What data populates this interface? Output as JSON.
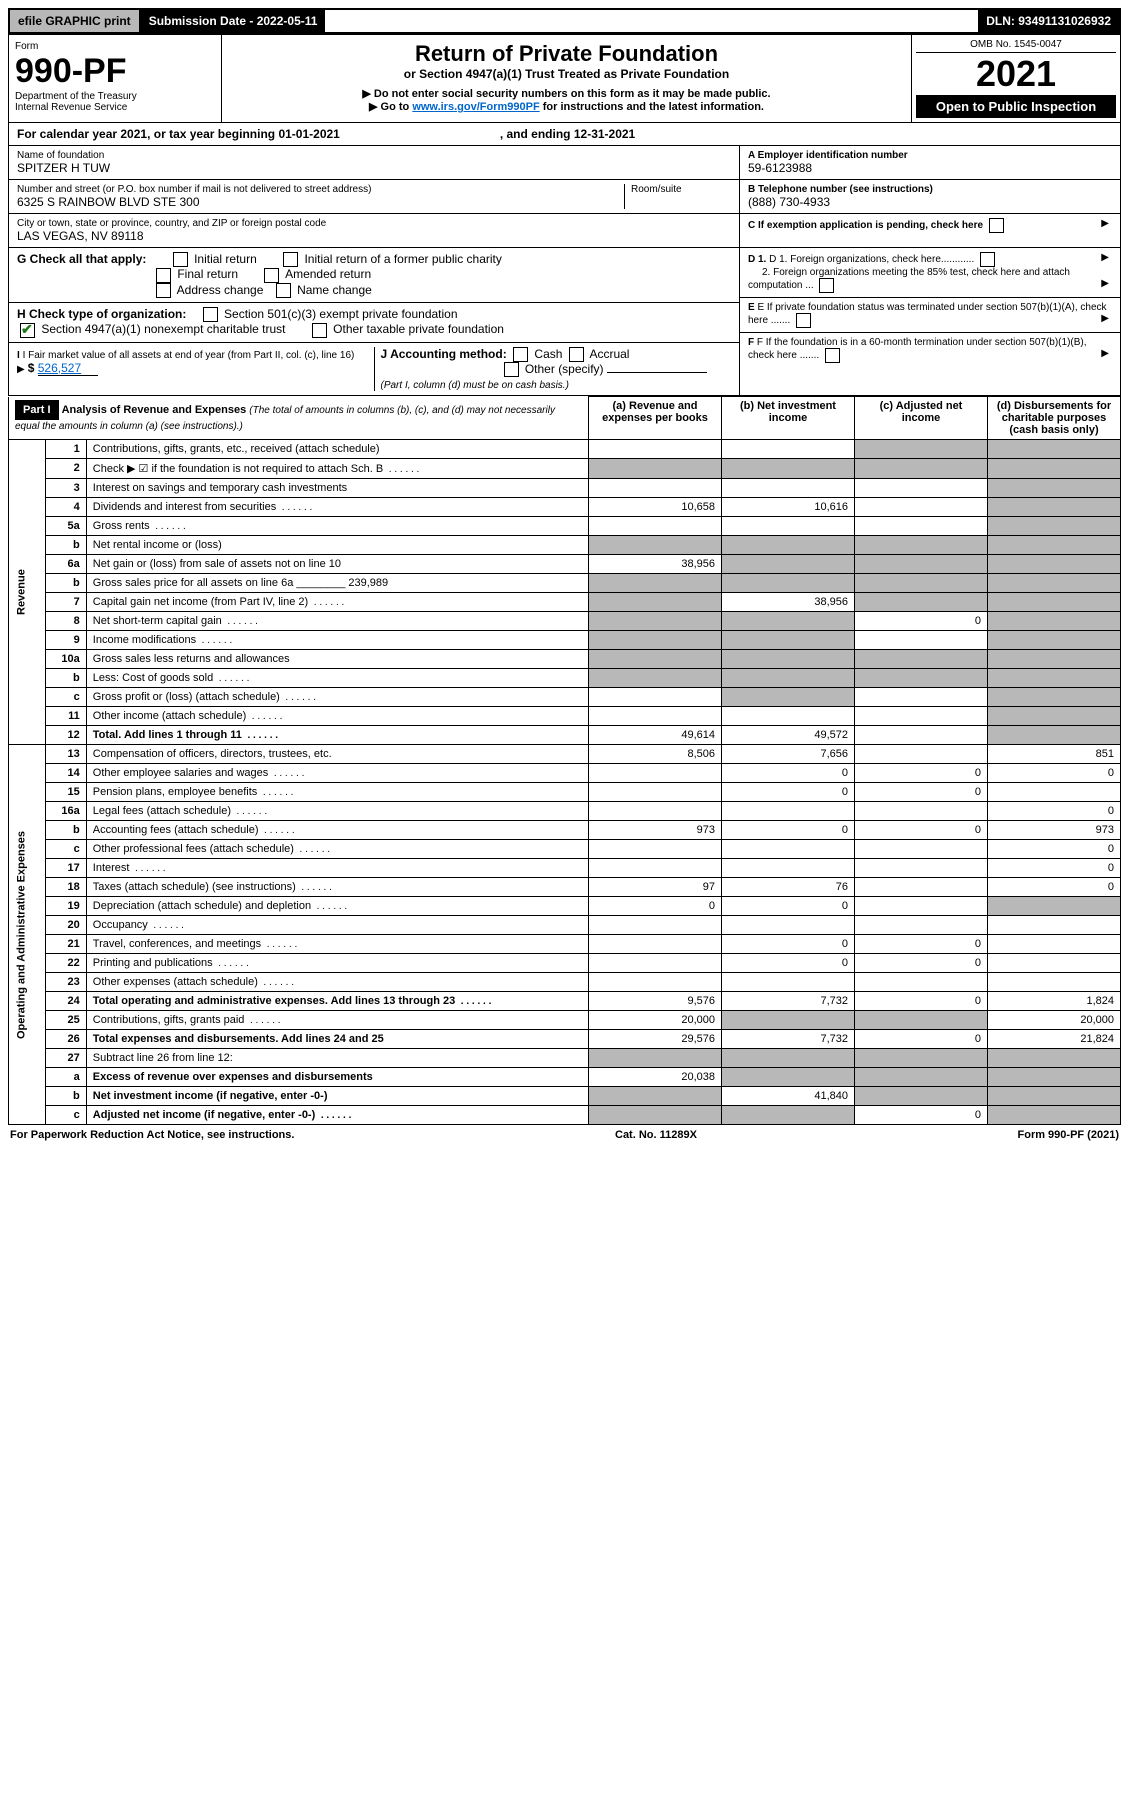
{
  "topbar": {
    "efile": "efile GRAPHIC print",
    "sub_label": "Submission Date - 2022-05-11",
    "dln": "DLN: 93491131026932"
  },
  "header": {
    "form_label": "Form",
    "form_number": "990-PF",
    "dept": "Department of the Treasury",
    "irs": "Internal Revenue Service",
    "title": "Return of Private Foundation",
    "subtitle": "or Section 4947(a)(1) Trust Treated as Private Foundation",
    "note1": "▶ Do not enter social security numbers on this form as it may be made public.",
    "note2_pre": "▶ Go to ",
    "note2_link": "www.irs.gov/Form990PF",
    "note2_post": " for instructions and the latest information.",
    "omb": "OMB No. 1545-0047",
    "year": "2021",
    "open": "Open to Public Inspection"
  },
  "cal": {
    "pre": "For calendar year 2021, or tax year beginning ",
    "begin": "01-01-2021",
    "mid": ", and ending ",
    "end": "12-31-2021"
  },
  "name_block": {
    "label": "Name of foundation",
    "value": "SPITZER H TUW",
    "addr_label": "Number and street (or P.O. box number if mail is not delivered to street address)",
    "addr": "6325 S RAINBOW BLVD STE 300",
    "room_label": "Room/suite",
    "city_label": "City or town, state or province, country, and ZIP or foreign postal code",
    "city": "LAS VEGAS, NV  89118"
  },
  "right_block": {
    "a_lbl": "A Employer identification number",
    "a_val": "59-6123988",
    "b_lbl": "B Telephone number (see instructions)",
    "b_val": "(888) 730-4933",
    "c_lbl": "C If exemption application is pending, check here",
    "d1": "D 1. Foreign organizations, check here............",
    "d2": "2. Foreign organizations meeting the 85% test, check here and attach computation ...",
    "e": "E If private foundation status was terminated under section 507(b)(1)(A), check here .......",
    "f": "F If the foundation is in a 60-month termination under section 507(b)(1)(B), check here ......."
  },
  "g_block": {
    "label": "G Check all that apply:",
    "opts": [
      "Initial return",
      "Initial return of a former public charity",
      "Final return",
      "Amended return",
      "Address change",
      "Name change"
    ]
  },
  "h_block": {
    "label": "H Check type of organization:",
    "opts": [
      "Section 501(c)(3) exempt private foundation",
      "Section 4947(a)(1) nonexempt charitable trust",
      "Other taxable private foundation"
    ]
  },
  "i_block": {
    "label": "I Fair market value of all assets at end of year (from Part II, col. (c), line 16)",
    "val": "526,527"
  },
  "j_block": {
    "label": "J Accounting method:",
    "opts": [
      "Cash",
      "Accrual",
      "Other (specify)"
    ],
    "note": "(Part I, column (d) must be on cash basis.)"
  },
  "part1": {
    "hdr": "Part I",
    "title": "Analysis of Revenue and Expenses",
    "title_note": "(The total of amounts in columns (b), (c), and (d) may not necessarily equal the amounts in column (a) (see instructions).)",
    "cols": {
      "a": "(a) Revenue and expenses per books",
      "b": "(b) Net investment income",
      "c": "(c) Adjusted net income",
      "d": "(d) Disbursements for charitable purposes (cash basis only)"
    }
  },
  "sections": {
    "revenue": "Revenue",
    "opex": "Operating and Administrative Expenses"
  },
  "rows": [
    {
      "n": "1",
      "lbl": "Contributions, gifts, grants, etc., received (attach schedule)",
      "a": "",
      "b": "",
      "c": "s",
      "d": "s"
    },
    {
      "n": "2",
      "lbl": "Check ▶ ☑ if the foundation is not required to attach Sch. B",
      "a": "s",
      "b": "s",
      "c": "s",
      "d": "s",
      "dotted": true
    },
    {
      "n": "3",
      "lbl": "Interest on savings and temporary cash investments",
      "a": "",
      "b": "",
      "c": "",
      "d": "s"
    },
    {
      "n": "4",
      "lbl": "Dividends and interest from securities",
      "a": "10,658",
      "b": "10,616",
      "c": "",
      "d": "s",
      "dotted": true
    },
    {
      "n": "5a",
      "lbl": "Gross rents",
      "a": "",
      "b": "",
      "c": "",
      "d": "s",
      "dotted": true
    },
    {
      "n": "b",
      "lbl": "Net rental income or (loss)",
      "a": "s",
      "b": "s",
      "c": "s",
      "d": "s"
    },
    {
      "n": "6a",
      "lbl": "Net gain or (loss) from sale of assets not on line 10",
      "a": "38,956",
      "b": "s",
      "c": "s",
      "d": "s"
    },
    {
      "n": "b",
      "lbl": "Gross sales price for all assets on line 6a ________ 239,989",
      "a": "s",
      "b": "s",
      "c": "s",
      "d": "s"
    },
    {
      "n": "7",
      "lbl": "Capital gain net income (from Part IV, line 2)",
      "a": "s",
      "b": "38,956",
      "c": "s",
      "d": "s",
      "dotted": true
    },
    {
      "n": "8",
      "lbl": "Net short-term capital gain",
      "a": "s",
      "b": "s",
      "c": "0",
      "d": "s",
      "dotted": true
    },
    {
      "n": "9",
      "lbl": "Income modifications",
      "a": "s",
      "b": "s",
      "c": "",
      "d": "s",
      "dotted": true
    },
    {
      "n": "10a",
      "lbl": "Gross sales less returns and allowances",
      "a": "s",
      "b": "s",
      "c": "s",
      "d": "s"
    },
    {
      "n": "b",
      "lbl": "Less: Cost of goods sold",
      "a": "s",
      "b": "s",
      "c": "s",
      "d": "s",
      "dotted": true
    },
    {
      "n": "c",
      "lbl": "Gross profit or (loss) (attach schedule)",
      "a": "",
      "b": "s",
      "c": "",
      "d": "s",
      "dotted": true
    },
    {
      "n": "11",
      "lbl": "Other income (attach schedule)",
      "a": "",
      "b": "",
      "c": "",
      "d": "s",
      "dotted": true
    },
    {
      "n": "12",
      "lbl": "Total. Add lines 1 through 11",
      "a": "49,614",
      "b": "49,572",
      "c": "",
      "d": "s",
      "bold": true,
      "dotted": true
    },
    {
      "n": "13",
      "lbl": "Compensation of officers, directors, trustees, etc.",
      "a": "8,506",
      "b": "7,656",
      "c": "",
      "d": "851"
    },
    {
      "n": "14",
      "lbl": "Other employee salaries and wages",
      "a": "",
      "b": "0",
      "c": "0",
      "d": "0",
      "dotted": true
    },
    {
      "n": "15",
      "lbl": "Pension plans, employee benefits",
      "a": "",
      "b": "0",
      "c": "0",
      "d": "",
      "dotted": true
    },
    {
      "n": "16a",
      "lbl": "Legal fees (attach schedule)",
      "a": "",
      "b": "",
      "c": "",
      "d": "0",
      "dotted": true
    },
    {
      "n": "b",
      "lbl": "Accounting fees (attach schedule)",
      "a": "973",
      "b": "0",
      "c": "0",
      "d": "973",
      "dotted": true
    },
    {
      "n": "c",
      "lbl": "Other professional fees (attach schedule)",
      "a": "",
      "b": "",
      "c": "",
      "d": "0",
      "dotted": true
    },
    {
      "n": "17",
      "lbl": "Interest",
      "a": "",
      "b": "",
      "c": "",
      "d": "0",
      "dotted": true
    },
    {
      "n": "18",
      "lbl": "Taxes (attach schedule) (see instructions)",
      "a": "97",
      "b": "76",
      "c": "",
      "d": "0",
      "dotted": true
    },
    {
      "n": "19",
      "lbl": "Depreciation (attach schedule) and depletion",
      "a": "0",
      "b": "0",
      "c": "",
      "d": "s",
      "dotted": true
    },
    {
      "n": "20",
      "lbl": "Occupancy",
      "a": "",
      "b": "",
      "c": "",
      "d": "",
      "dotted": true
    },
    {
      "n": "21",
      "lbl": "Travel, conferences, and meetings",
      "a": "",
      "b": "0",
      "c": "0",
      "d": "",
      "dotted": true
    },
    {
      "n": "22",
      "lbl": "Printing and publications",
      "a": "",
      "b": "0",
      "c": "0",
      "d": "",
      "dotted": true
    },
    {
      "n": "23",
      "lbl": "Other expenses (attach schedule)",
      "a": "",
      "b": "",
      "c": "",
      "d": "",
      "dotted": true
    },
    {
      "n": "24",
      "lbl": "Total operating and administrative expenses. Add lines 13 through 23",
      "a": "9,576",
      "b": "7,732",
      "c": "0",
      "d": "1,824",
      "bold": true,
      "dotted": true
    },
    {
      "n": "25",
      "lbl": "Contributions, gifts, grants paid",
      "a": "20,000",
      "b": "s",
      "c": "s",
      "d": "20,000",
      "dotted": true
    },
    {
      "n": "26",
      "lbl": "Total expenses and disbursements. Add lines 24 and 25",
      "a": "29,576",
      "b": "7,732",
      "c": "0",
      "d": "21,824",
      "bold": true
    },
    {
      "n": "27",
      "lbl": "Subtract line 26 from line 12:",
      "a": "s",
      "b": "s",
      "c": "s",
      "d": "s"
    },
    {
      "n": "a",
      "lbl": "Excess of revenue over expenses and disbursements",
      "a": "20,038",
      "b": "s",
      "c": "s",
      "d": "s",
      "bold": true
    },
    {
      "n": "b",
      "lbl": "Net investment income (if negative, enter -0-)",
      "a": "s",
      "b": "41,840",
      "c": "s",
      "d": "s",
      "bold": true
    },
    {
      "n": "c",
      "lbl": "Adjusted net income (if negative, enter -0-)",
      "a": "s",
      "b": "s",
      "c": "0",
      "d": "s",
      "bold": true,
      "dotted": true
    }
  ],
  "footer": {
    "left": "For Paperwork Reduction Act Notice, see instructions.",
    "mid": "Cat. No. 11289X",
    "right": "Form 990-PF (2021)"
  }
}
